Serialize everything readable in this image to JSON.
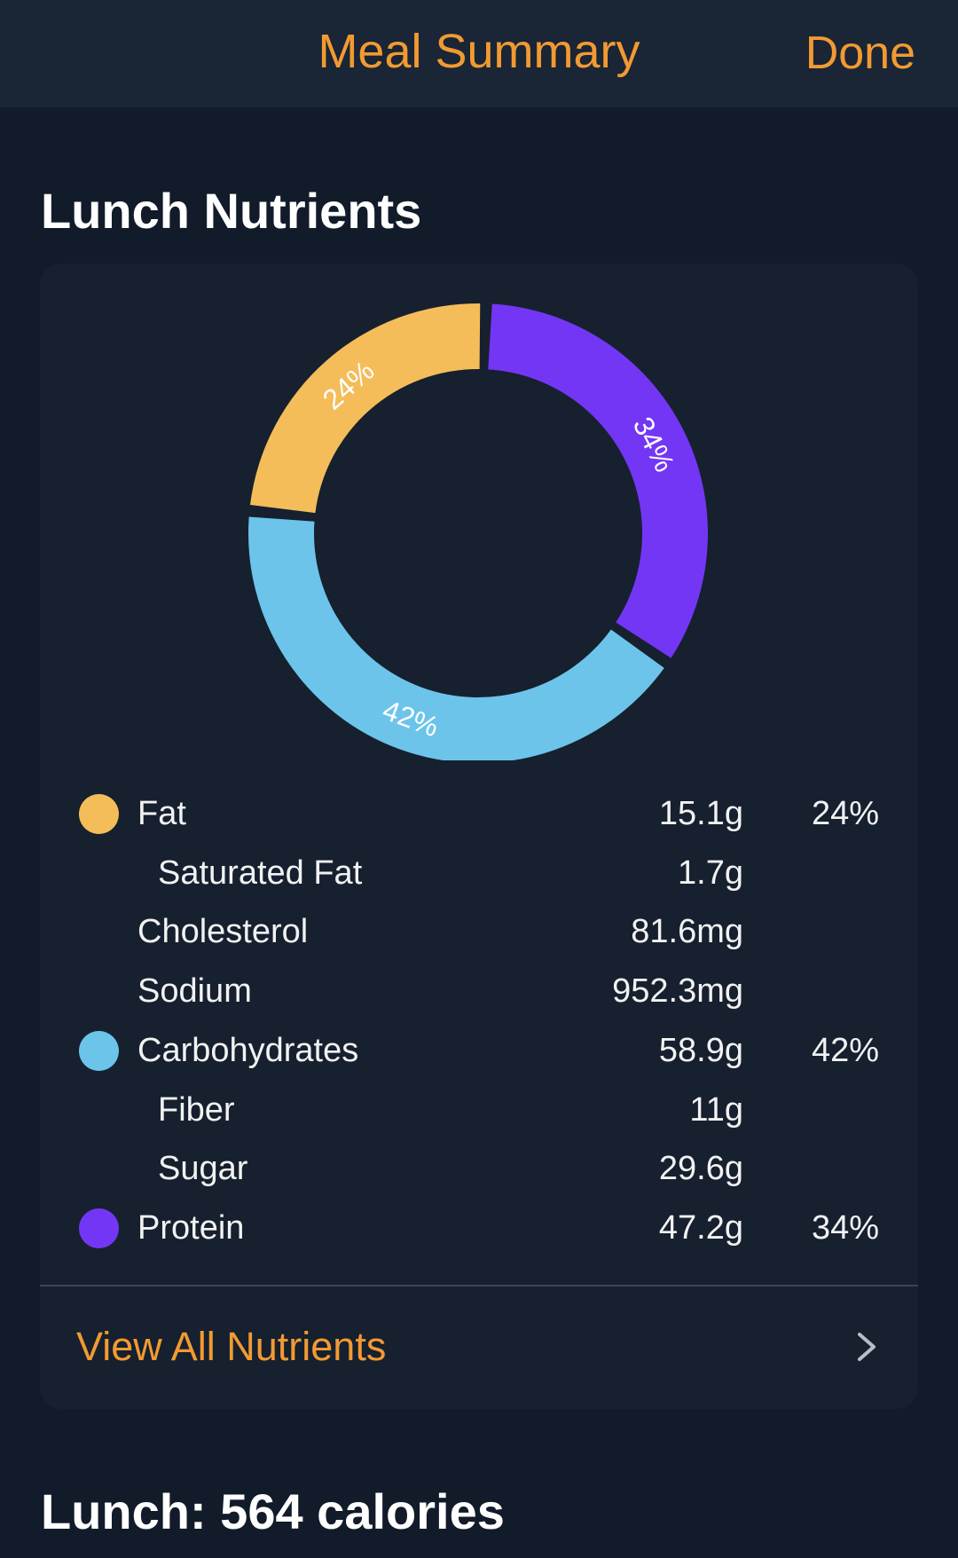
{
  "header": {
    "title": "Meal Summary",
    "done_label": "Done"
  },
  "section": {
    "title": "Lunch Nutrients"
  },
  "chart_data": {
    "type": "pie",
    "slices": [
      {
        "name": "Protein",
        "value": 34,
        "label": "34%",
        "color": "#7436f5"
      },
      {
        "name": "Carbohydrates",
        "value": 42,
        "label": "42%",
        "color": "#6cc4ea"
      },
      {
        "name": "Fat",
        "value": 24,
        "label": "24%",
        "color": "#f4bd5a"
      }
    ]
  },
  "nutrients": [
    {
      "label": "Fat",
      "amount": "15.1g",
      "percent": "24%",
      "color": "#f4bd5a",
      "indent": false,
      "dot": true
    },
    {
      "label": "Saturated Fat",
      "amount": "1.7g",
      "percent": "",
      "indent": true,
      "dot": false
    },
    {
      "label": "Cholesterol",
      "amount": "81.6mg",
      "percent": "",
      "indent": false,
      "dot": false
    },
    {
      "label": "Sodium",
      "amount": "952.3mg",
      "percent": "",
      "indent": false,
      "dot": false
    },
    {
      "label": "Carbohydrates",
      "amount": "58.9g",
      "percent": "42%",
      "color": "#6cc4ea",
      "indent": false,
      "dot": true
    },
    {
      "label": "Fiber",
      "amount": "11g",
      "percent": "",
      "indent": true,
      "dot": false
    },
    {
      "label": "Sugar",
      "amount": "29.6g",
      "percent": "",
      "indent": true,
      "dot": false
    },
    {
      "label": "Protein",
      "amount": "47.2g",
      "percent": "34%",
      "color": "#7436f5",
      "indent": false,
      "dot": true
    }
  ],
  "view_all": {
    "label": "View All Nutrients",
    "icon": "chevron-right-icon"
  },
  "calories_title": "Lunch: 564 calories"
}
